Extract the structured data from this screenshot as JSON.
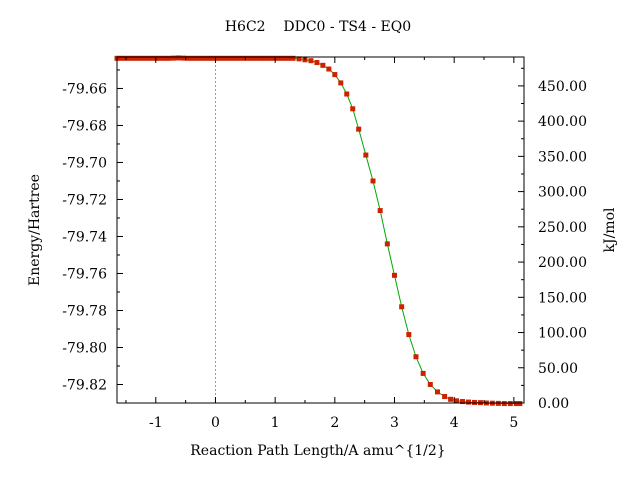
{
  "chart_data": {
    "type": "line",
    "title": "H6C2    DDC0 - TS4 - EQ0",
    "xlabel": "Reaction Path Length/A amu^{1/2}",
    "ylabel_left": "Energy/Hartree",
    "ylabel_right": "kJ/mol",
    "xlim": [
      -1.65,
      5.17
    ],
    "ylim_left": [
      -79.83,
      -79.643
    ],
    "ylim_right": [
      0.0,
      491.0
    ],
    "x_ticks": [
      -1,
      0,
      1,
      2,
      3,
      4,
      5
    ],
    "x_tick_labels": [
      "-1",
      "0",
      "1",
      "2",
      "3",
      "4",
      "5"
    ],
    "y_left_ticks": [
      -79.66,
      -79.68,
      -79.7,
      -79.72,
      -79.74,
      -79.76,
      -79.78,
      -79.8,
      -79.82
    ],
    "y_left_tick_labels": [
      "-79.66",
      "-79.68",
      "-79.70",
      "-79.72",
      "-79.74",
      "-79.76",
      "-79.78",
      "-79.80",
      "-79.82"
    ],
    "y_right_ticks": [
      0,
      50,
      100,
      150,
      200,
      250,
      300,
      350,
      400,
      450
    ],
    "y_right_tick_labels": [
      "0.00",
      "50.00",
      "100.00",
      "150.00",
      "200.00",
      "250.00",
      "300.00",
      "350.00",
      "400.00",
      "450.00"
    ],
    "vline_x": 0,
    "grid": false,
    "line_color": "#00aa00",
    "marker_color": "#cc2200",
    "series": [
      {
        "x": [
          -1.65,
          -1.58,
          -1.5,
          -1.42,
          -1.34,
          -1.26,
          -1.18,
          -1.1,
          -1.02,
          -0.94,
          -0.86,
          -0.78,
          -0.7,
          -0.62,
          -0.54,
          -0.46,
          -0.38,
          -0.3,
          -0.22,
          -0.14,
          -0.06,
          0.02,
          0.1,
          0.18,
          0.26,
          0.34,
          0.42,
          0.5,
          0.58,
          0.66,
          0.74,
          0.82,
          0.9,
          0.98,
          1.06,
          1.14,
          1.22,
          1.3,
          1.4,
          1.5,
          1.6,
          1.7,
          1.8,
          1.9,
          2.0,
          2.1,
          2.2,
          2.3,
          2.4,
          2.52,
          2.64,
          2.76,
          2.88,
          3.0,
          3.12,
          3.24,
          3.36,
          3.48,
          3.6,
          3.72,
          3.84,
          3.94,
          4.04,
          4.14,
          4.24,
          4.34,
          4.44,
          4.54,
          4.64,
          4.74,
          4.84,
          4.94,
          5.04,
          5.1
        ],
        "y": [
          -79.6437,
          -79.6437,
          -79.6437,
          -79.6437,
          -79.6437,
          -79.6437,
          -79.6437,
          -79.6437,
          -79.6437,
          -79.6437,
          -79.6437,
          -79.6437,
          -79.6436,
          -79.6435,
          -79.6436,
          -79.6437,
          -79.6437,
          -79.6437,
          -79.6437,
          -79.6437,
          -79.6437,
          -79.6437,
          -79.6437,
          -79.6437,
          -79.6437,
          -79.6437,
          -79.6437,
          -79.6437,
          -79.6437,
          -79.6437,
          -79.6437,
          -79.6437,
          -79.6437,
          -79.6437,
          -79.6437,
          -79.6437,
          -79.6437,
          -79.6437,
          -79.644,
          -79.6445,
          -79.645,
          -79.646,
          -79.6475,
          -79.6495,
          -79.6525,
          -79.657,
          -79.663,
          -79.671,
          -79.682,
          -79.696,
          -79.71,
          -79.726,
          -79.744,
          -79.761,
          -79.778,
          -79.793,
          -79.805,
          -79.814,
          -79.82,
          -79.824,
          -79.8265,
          -79.828,
          -79.8288,
          -79.8292,
          -79.8295,
          -79.8297,
          -79.8298,
          -79.83,
          -79.8301,
          -79.8302,
          -79.8303,
          -79.8303,
          -79.8303,
          -79.8303
        ]
      }
    ]
  }
}
